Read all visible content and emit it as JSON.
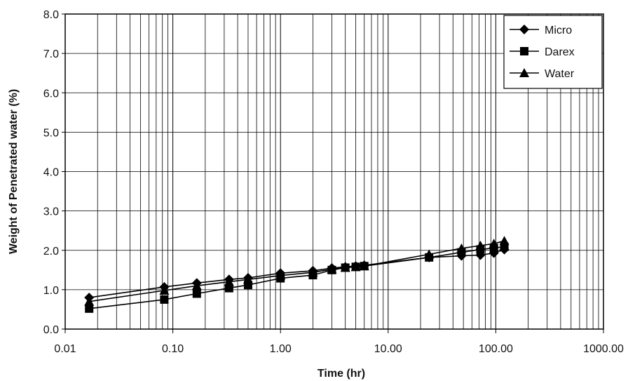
{
  "chart_data": {
    "type": "line",
    "xscale": "log",
    "xlabel": "Time (hr)",
    "ylabel": "Weight of Penetrated water  (%)",
    "xlim": [
      0.01,
      1000
    ],
    "ylim": [
      0,
      8
    ],
    "x_tick_labels": [
      "0.01",
      "0.10",
      "1.00",
      "10.00",
      "100.00",
      "1000.00"
    ],
    "y_tick_labels": [
      "0.0",
      "1.0",
      "2.0",
      "3.0",
      "4.0",
      "5.0",
      "6.0",
      "7.0",
      "8.0"
    ],
    "grid": true,
    "legend_position": "top-right",
    "series": [
      {
        "name": "Micro",
        "marker": "diamond",
        "x": [
          0.0167,
          0.0833,
          0.167,
          0.333,
          0.5,
          1,
          2,
          3,
          4,
          5,
          6,
          24,
          48,
          72,
          96,
          120
        ],
        "y": [
          0.8,
          1.07,
          1.17,
          1.26,
          1.3,
          1.42,
          1.48,
          1.55,
          1.58,
          1.6,
          1.62,
          1.82,
          1.86,
          1.88,
          1.93,
          2.02
        ]
      },
      {
        "name": "Darex",
        "marker": "square",
        "x": [
          0.0167,
          0.0833,
          0.167,
          0.333,
          0.5,
          1,
          2,
          3,
          4,
          5,
          6,
          24,
          48,
          72,
          96,
          120
        ],
        "y": [
          0.52,
          0.75,
          0.9,
          1.04,
          1.12,
          1.29,
          1.37,
          1.5,
          1.56,
          1.58,
          1.6,
          1.82,
          1.95,
          2.02,
          2.06,
          2.09
        ]
      },
      {
        "name": "Water",
        "marker": "triangle",
        "x": [
          0.0167,
          0.0833,
          0.167,
          0.333,
          0.5,
          1,
          2,
          3,
          4,
          5,
          6,
          24,
          48,
          72,
          96,
          120
        ],
        "y": [
          0.7,
          0.98,
          1.1,
          1.2,
          1.26,
          1.36,
          1.44,
          1.52,
          1.56,
          1.58,
          1.6,
          1.9,
          2.05,
          2.12,
          2.17,
          2.24
        ]
      }
    ]
  }
}
